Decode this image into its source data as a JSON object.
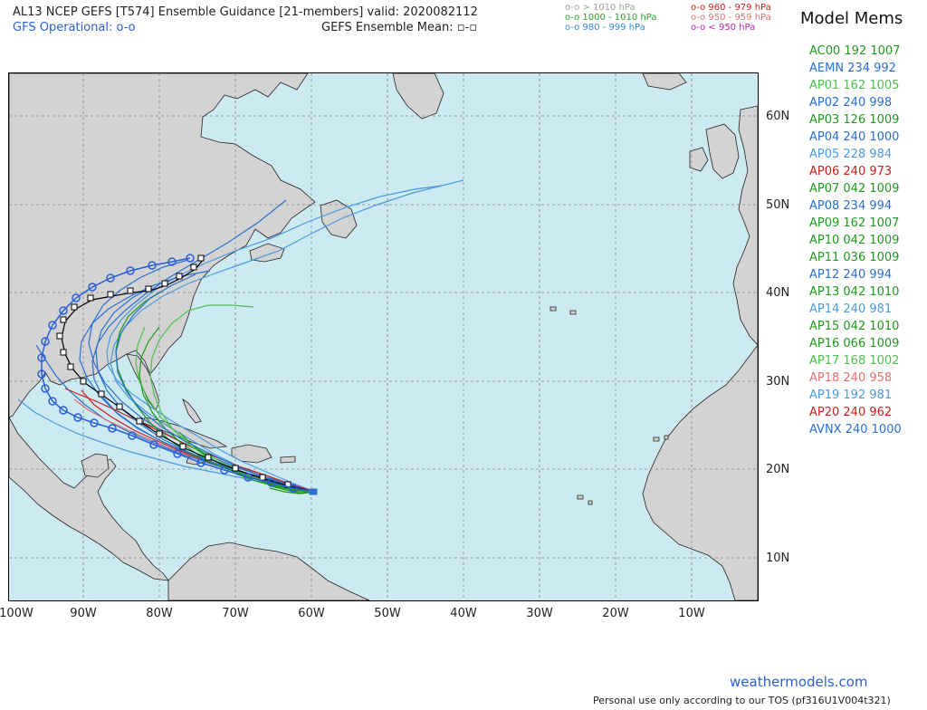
{
  "header": {
    "title": "AL13 NCEP GEFS [T574] Ensemble Guidance [21-members] valid: 2020082112",
    "gfs_operational": "GFS Operational: o-o",
    "ensemble_mean": "GEFS Ensemble Mean: ",
    "ensemble_mean_symbol": "▫-▫"
  },
  "pressure_key": [
    {
      "label": "o-o > 1010 hPa",
      "color": "#a0a0a0"
    },
    {
      "label": "o-o 1000 - 1010 hPa",
      "color": "#2ca02c"
    },
    {
      "label": "o-o 980 - 999 hPa",
      "color": "#3a86d6"
    },
    {
      "label": "o-o 960 - 979 hPa",
      "color": "#c81e1e"
    },
    {
      "label": "o-o 950 - 959 hPa",
      "color": "#e07070"
    },
    {
      "label": "o-o < 950 hPa",
      "color": "#c020c0"
    }
  ],
  "members_panel": {
    "title": "Model Mems",
    "items": [
      {
        "label": "AC00 192 1007",
        "color": "#1f9a1f"
      },
      {
        "label": "AEMN 234 992",
        "color": "#2a6fd0"
      },
      {
        "label": "AP01 162 1005",
        "color": "#4cc04c"
      },
      {
        "label": "AP02 240 998",
        "color": "#2a6fd0"
      },
      {
        "label": "AP03 126 1009",
        "color": "#1f9a1f"
      },
      {
        "label": "AP04 240 1000",
        "color": "#2a6fd0"
      },
      {
        "label": "AP05 228 984",
        "color": "#4a9ae0"
      },
      {
        "label": "AP06 240 973",
        "color": "#c81e1e"
      },
      {
        "label": "AP07 042 1009",
        "color": "#1f9a1f"
      },
      {
        "label": "AP08 234 994",
        "color": "#2a6fd0"
      },
      {
        "label": "AP09 162 1007",
        "color": "#1f9a1f"
      },
      {
        "label": "AP10 042 1009",
        "color": "#1f9a1f"
      },
      {
        "label": "AP11 036 1009",
        "color": "#1f9a1f"
      },
      {
        "label": "AP12 240 994",
        "color": "#2a6fd0"
      },
      {
        "label": "AP13 042 1010",
        "color": "#1f9a1f"
      },
      {
        "label": "AP14 240 981",
        "color": "#4a9ae0"
      },
      {
        "label": "AP15 042 1010",
        "color": "#1f9a1f"
      },
      {
        "label": "AP16 066 1009",
        "color": "#1f9a1f"
      },
      {
        "label": "AP17 168 1002",
        "color": "#4cc04c"
      },
      {
        "label": "AP18 240 958",
        "color": "#e07070"
      },
      {
        "label": "AP19 192 981",
        "color": "#4a9ae0"
      },
      {
        "label": "AP20 240 962",
        "color": "#c81e1e"
      },
      {
        "label": "AVNX 240 1000",
        "color": "#2a6fd0"
      }
    ]
  },
  "map": {
    "ocean_color": "#cde9f1",
    "land_color": "#d3d3d3",
    "lat_labels": [
      "60N",
      "50N",
      "40N",
      "30N",
      "20N",
      "10N"
    ],
    "lon_labels": [
      "100W",
      "90W",
      "80W",
      "70W",
      "60W",
      "50W",
      "40W",
      "30W",
      "20W",
      "10W"
    ]
  },
  "footer": {
    "watermark": "weathermodels.com",
    "tos": "Personal use only according to our TOS (pf316U1V004t321)"
  }
}
